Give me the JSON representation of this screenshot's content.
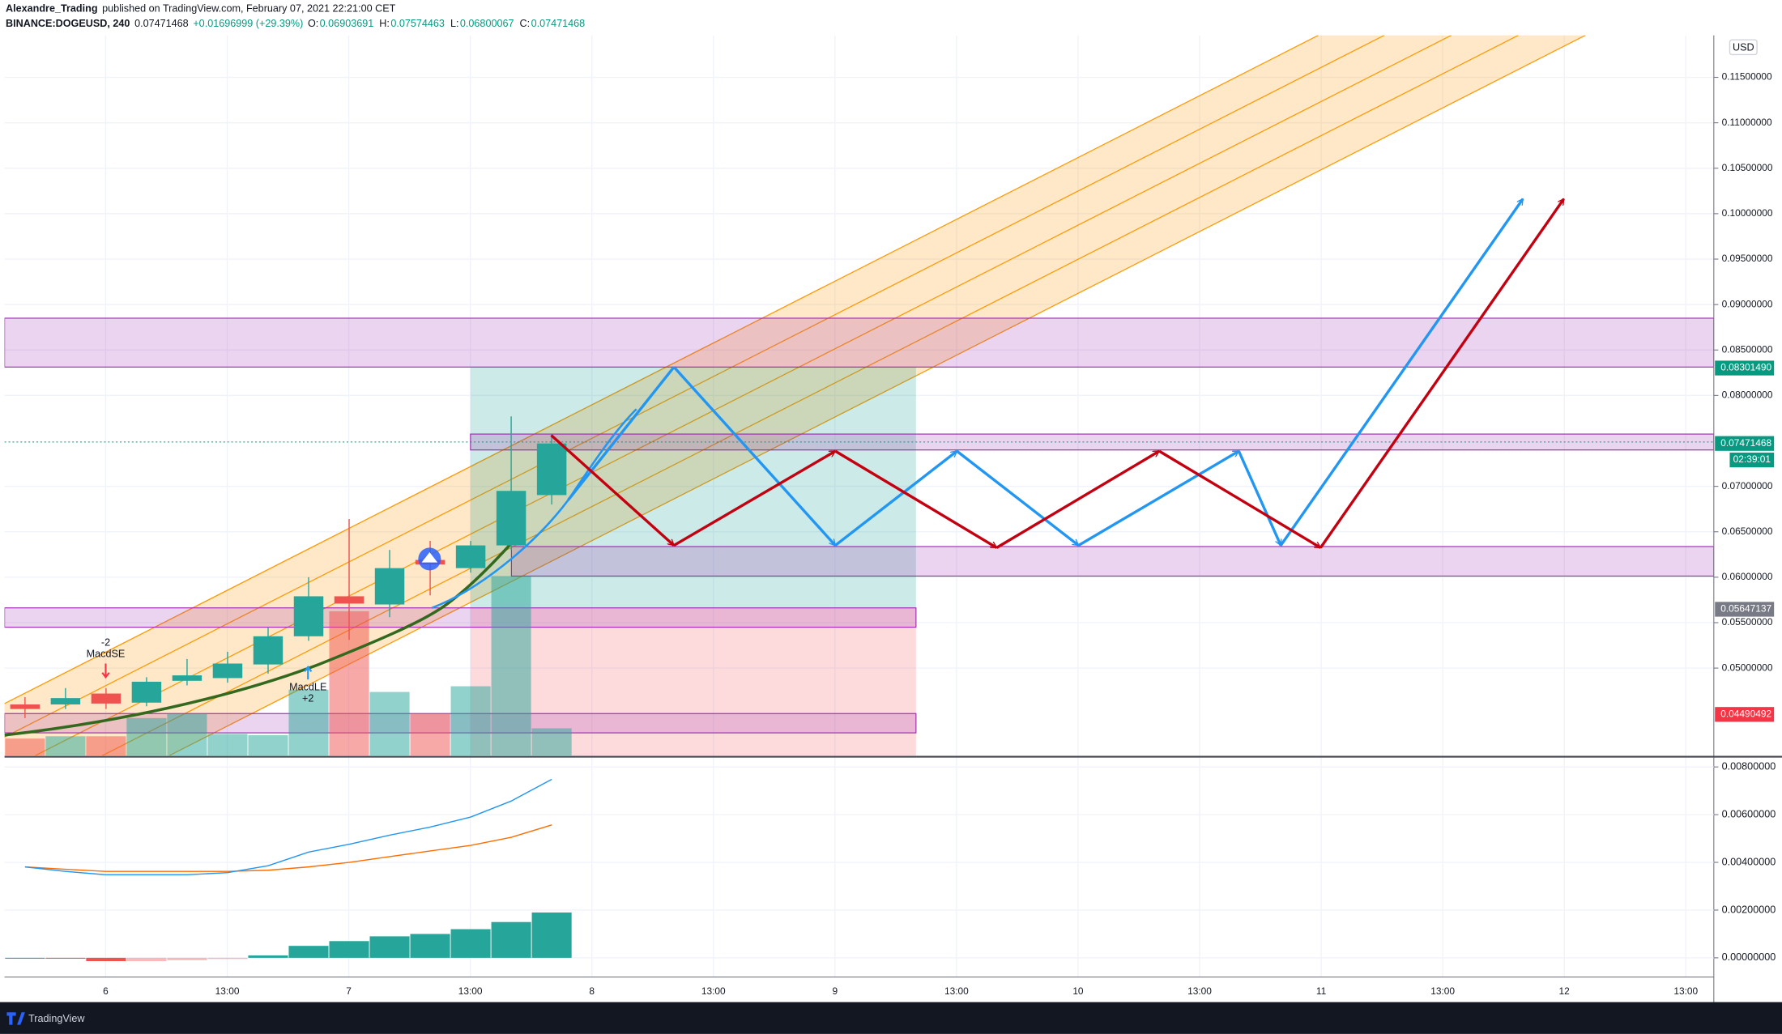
{
  "header": {
    "publisher": "Alexandre_Trading",
    "published": "published on TradingView.com, February 07, 2021 22:21:00 CET",
    "symbol": "BINANCE:DOGEUSD, 240",
    "last": "0.07471468",
    "change": "+0.01696999 (+29.39%)",
    "ohlc": [
      {
        "label": "O:",
        "value": "0.06903691"
      },
      {
        "label": "H:",
        "value": "0.07574463"
      },
      {
        "label": "L:",
        "value": "0.06800067"
      },
      {
        "label": "C:",
        "value": "0.07471468"
      }
    ]
  },
  "footer": {
    "brand": "TradingView"
  },
  "annotations": {
    "short_qty": "-2",
    "short": "MacdSE",
    "long": "MacdLE",
    "long_qty": "+2"
  },
  "chart_data": [
    {
      "type": "candlestick",
      "currency": "USD",
      "ylim": [
        0.040375,
        0.119625
      ],
      "yticks": [
        {
          "value": 0.115,
          "label": "0.11500000"
        },
        {
          "value": 0.11,
          "label": "0.11000000"
        },
        {
          "value": 0.105,
          "label": "0.10500000"
        },
        {
          "value": 0.1,
          "label": "0.10000000"
        },
        {
          "value": 0.095,
          "label": "0.09500000"
        },
        {
          "value": 0.09,
          "label": "0.09000000"
        },
        {
          "value": 0.085,
          "label": "0.08500000"
        },
        {
          "value": 0.08,
          "label": "0.08000000"
        },
        {
          "value": 0.07,
          "label": "0.07000000"
        },
        {
          "value": 0.065,
          "label": "0.06500000"
        },
        {
          "value": 0.06,
          "label": "0.06000000"
        },
        {
          "value": 0.055,
          "label": "0.05500000"
        },
        {
          "value": 0.05,
          "label": "0.05000000"
        }
      ],
      "grid": true,
      "x_labels": [
        "6",
        "13:00",
        "7",
        "13:00",
        "8",
        "13:00",
        "9",
        "13:00",
        "10",
        "13:00",
        "11",
        "13:00",
        "12",
        "13:00"
      ],
      "up_color": "#26a69a",
      "down_color": "#ef5350",
      "open": [
        0.046,
        0.046,
        0.0472,
        0.0462,
        0.0486,
        0.0489,
        0.0504,
        0.0535,
        0.0579,
        0.057,
        0.0619,
        0.061,
        0.0635,
        0.06903691
      ],
      "high": [
        0.0468,
        0.0478,
        0.0478,
        0.049,
        0.051,
        0.0518,
        0.0545,
        0.06,
        0.0664,
        0.063,
        0.064,
        0.064,
        0.0777,
        0.07574463
      ],
      "low": [
        0.0445,
        0.0455,
        0.0455,
        0.0458,
        0.0481,
        0.0484,
        0.0494,
        0.053,
        0.0531,
        0.0556,
        0.058,
        0.0605,
        0.063,
        0.06800067
      ],
      "close": [
        0.0455,
        0.0467,
        0.0461,
        0.0485,
        0.0492,
        0.0505,
        0.0535,
        0.0579,
        0.0571,
        0.061,
        0.0614,
        0.0635,
        0.0695,
        0.07471468
      ],
      "volume": [
        15,
        17,
        17,
        33,
        37,
        19,
        18,
        58,
        127,
        56,
        37,
        61,
        158,
        24
      ],
      "vlim": [
        0,
        634
      ],
      "price_tags": [
        {
          "value": 0.0830149,
          "label": "0.08301490",
          "color": "#089981"
        },
        {
          "value": 0.07471468,
          "label": "0.07471468",
          "color": "#089981"
        },
        {
          "value": 0.05647137,
          "label": "0.05647137",
          "color": "#787b86"
        },
        {
          "value": 0.04490492,
          "label": "0.04490492",
          "color": "#f23645"
        }
      ],
      "countdown": "02:39:01"
    },
    {
      "type": "macd",
      "ylim": [
        -0.000714,
        0.008381
      ],
      "yticks": [
        {
          "value": 0.008,
          "label": "0.00800000"
        },
        {
          "value": 0.006,
          "label": "0.00600000"
        },
        {
          "value": 0.004,
          "label": "0.00400000"
        },
        {
          "value": 0.002,
          "label": "0.00200000"
        },
        {
          "value": 0,
          "label": "0.00000000"
        }
      ],
      "macd": {
        "color": "#2196f3",
        "values": [
          0.00381,
          0.00362,
          0.00348,
          0.00348,
          0.00348,
          0.00357,
          0.00386,
          0.00443,
          0.00476,
          0.00514,
          0.00548,
          0.0059,
          0.00657,
          0.00748
        ]
      },
      "signal": {
        "color": "#ff6d00",
        "values": [
          0.00381,
          0.00371,
          0.00362,
          0.00362,
          0.00362,
          0.00362,
          0.00367,
          0.00381,
          0.004,
          0.00424,
          0.00448,
          0.00471,
          0.00505,
          0.00557
        ]
      },
      "histogram": {
        "pos_color": "#26a69a",
        "neg_color": "#ef5350",
        "values": [
          0,
          -2e-05,
          -0.00014,
          -0.00014,
          -0.0001,
          -5e-05,
          0.0001,
          0.0005,
          0.0007,
          0.0009,
          0.001,
          0.0012,
          0.0015,
          0.0019
        ]
      }
    }
  ]
}
